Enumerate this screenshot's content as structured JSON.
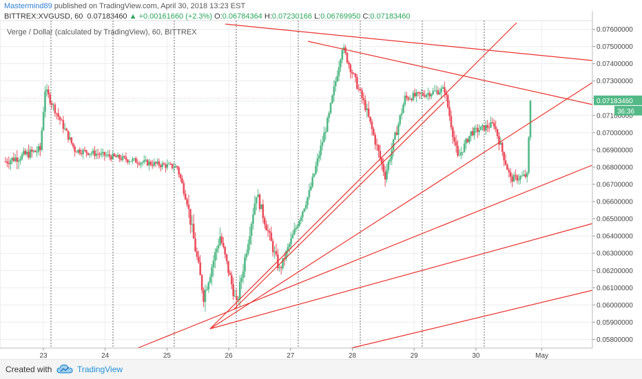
{
  "header": {
    "author": "Mastermind89",
    "published_text": "published on TradingView.com, April 30, 2018 13:23 EST",
    "symbol": "BITTREX:XVGUSD, 60",
    "last": "0.07183460",
    "arrow": "▲",
    "change": "+0.00161660 (+2.3%)",
    "ohlc": {
      "o_label": "O:",
      "o": "0.06784364",
      "h_label": "H:",
      "h": "0.07230166",
      "l_label": "L:",
      "l": "0.06769950",
      "c_label": "C:",
      "c": "0.07183460"
    }
  },
  "footer": {
    "created_with": "Created with",
    "brand": "TradingView"
  },
  "chart_data": {
    "type": "candlestick",
    "title": "Verge / Dollar (calculated by TradingView), 60, BITTREX",
    "ylim": [
      0.0575,
      0.0765
    ],
    "y_ticks": [
      "0.05800000",
      "0.05900000",
      "0.06000000",
      "0.06100000",
      "0.06200000",
      "0.06300000",
      "0.06400000",
      "0.06500000",
      "0.06600000",
      "0.06700000",
      "0.06800000",
      "0.06900000",
      "0.07000000",
      "0.07100000",
      "0.07200000",
      "0.07300000",
      "0.07400000",
      "0.07500000",
      "0.07600000"
    ],
    "x_ticks": [
      "23",
      "24",
      "25",
      "26",
      "27",
      "28",
      "29",
      "30",
      "May"
    ],
    "last_price_label": "0.07183460",
    "countdown_label": "36:36",
    "colors": {
      "up": "#53b987",
      "down": "#eb4d5c",
      "trendline": "#e8312c",
      "grid": "#ececec",
      "marker": "#666666"
    },
    "segments": [
      {
        "n": 22,
        "from": 0.0683,
        "to": 0.069,
        "vol": 0.0009
      },
      {
        "n": 3,
        "from": 0.069,
        "to": 0.0725,
        "vol": 0.0008
      },
      {
        "n": 18,
        "from": 0.0725,
        "to": 0.069,
        "vol": 0.0007
      },
      {
        "n": 40,
        "from": 0.069,
        "to": 0.0683,
        "vol": 0.0006
      },
      {
        "n": 22,
        "from": 0.0683,
        "to": 0.068,
        "vol": 0.0006
      },
      {
        "n": 6,
        "from": 0.068,
        "to": 0.066,
        "vol": 0.0007
      },
      {
        "n": 10,
        "from": 0.066,
        "to": 0.0605,
        "vol": 0.0012
      },
      {
        "n": 10,
        "from": 0.0605,
        "to": 0.064,
        "vol": 0.0012
      },
      {
        "n": 10,
        "from": 0.064,
        "to": 0.06,
        "vol": 0.001
      },
      {
        "n": 12,
        "from": 0.06,
        "to": 0.0665,
        "vol": 0.0011
      },
      {
        "n": 14,
        "from": 0.0665,
        "to": 0.062,
        "vol": 0.001
      },
      {
        "n": 18,
        "from": 0.062,
        "to": 0.0665,
        "vol": 0.0008
      },
      {
        "n": 12,
        "from": 0.0665,
        "to": 0.071,
        "vol": 0.0008
      },
      {
        "n": 8,
        "from": 0.071,
        "to": 0.075,
        "vol": 0.0009
      },
      {
        "n": 14,
        "from": 0.075,
        "to": 0.0715,
        "vol": 0.0008
      },
      {
        "n": 12,
        "from": 0.0715,
        "to": 0.0675,
        "vol": 0.0009
      },
      {
        "n": 12,
        "from": 0.0675,
        "to": 0.072,
        "vol": 0.0009
      },
      {
        "n": 24,
        "from": 0.072,
        "to": 0.0725,
        "vol": 0.0007
      },
      {
        "n": 8,
        "from": 0.0725,
        "to": 0.0685,
        "vol": 0.0009
      },
      {
        "n": 8,
        "from": 0.0685,
        "to": 0.07,
        "vol": 0.0007
      },
      {
        "n": 14,
        "from": 0.07,
        "to": 0.0705,
        "vol": 0.0007
      },
      {
        "n": 10,
        "from": 0.0705,
        "to": 0.0673,
        "vol": 0.0008
      },
      {
        "n": 10,
        "from": 0.0673,
        "to": 0.0675,
        "vol": 0.0007
      },
      {
        "n": 2,
        "from": 0.0675,
        "to": 0.0718,
        "vol": 0.0004
      }
    ],
    "trendlines": [
      {
        "x1": 327,
        "y1": 35,
        "x2": 860,
        "y2": 88
      },
      {
        "x1": 447,
        "y1": 60,
        "x2": 860,
        "y2": 152
      },
      {
        "x1": 305,
        "y1": 478,
        "x2": 750,
        "y2": 33
      },
      {
        "x1": 305,
        "y1": 478,
        "x2": 860,
        "y2": 120
      },
      {
        "x1": 200,
        "y1": 506,
        "x2": 860,
        "y2": 240
      },
      {
        "x1": 305,
        "y1": 478,
        "x2": 860,
        "y2": 325
      },
      {
        "x1": 510,
        "y1": 506,
        "x2": 860,
        "y2": 422
      },
      {
        "x1": 340,
        "y1": 449,
        "x2": 645,
        "y2": 148
      }
    ],
    "markers": [
      "23",
      "24",
      "25",
      "26",
      "27",
      "28",
      "29",
      "30"
    ]
  }
}
